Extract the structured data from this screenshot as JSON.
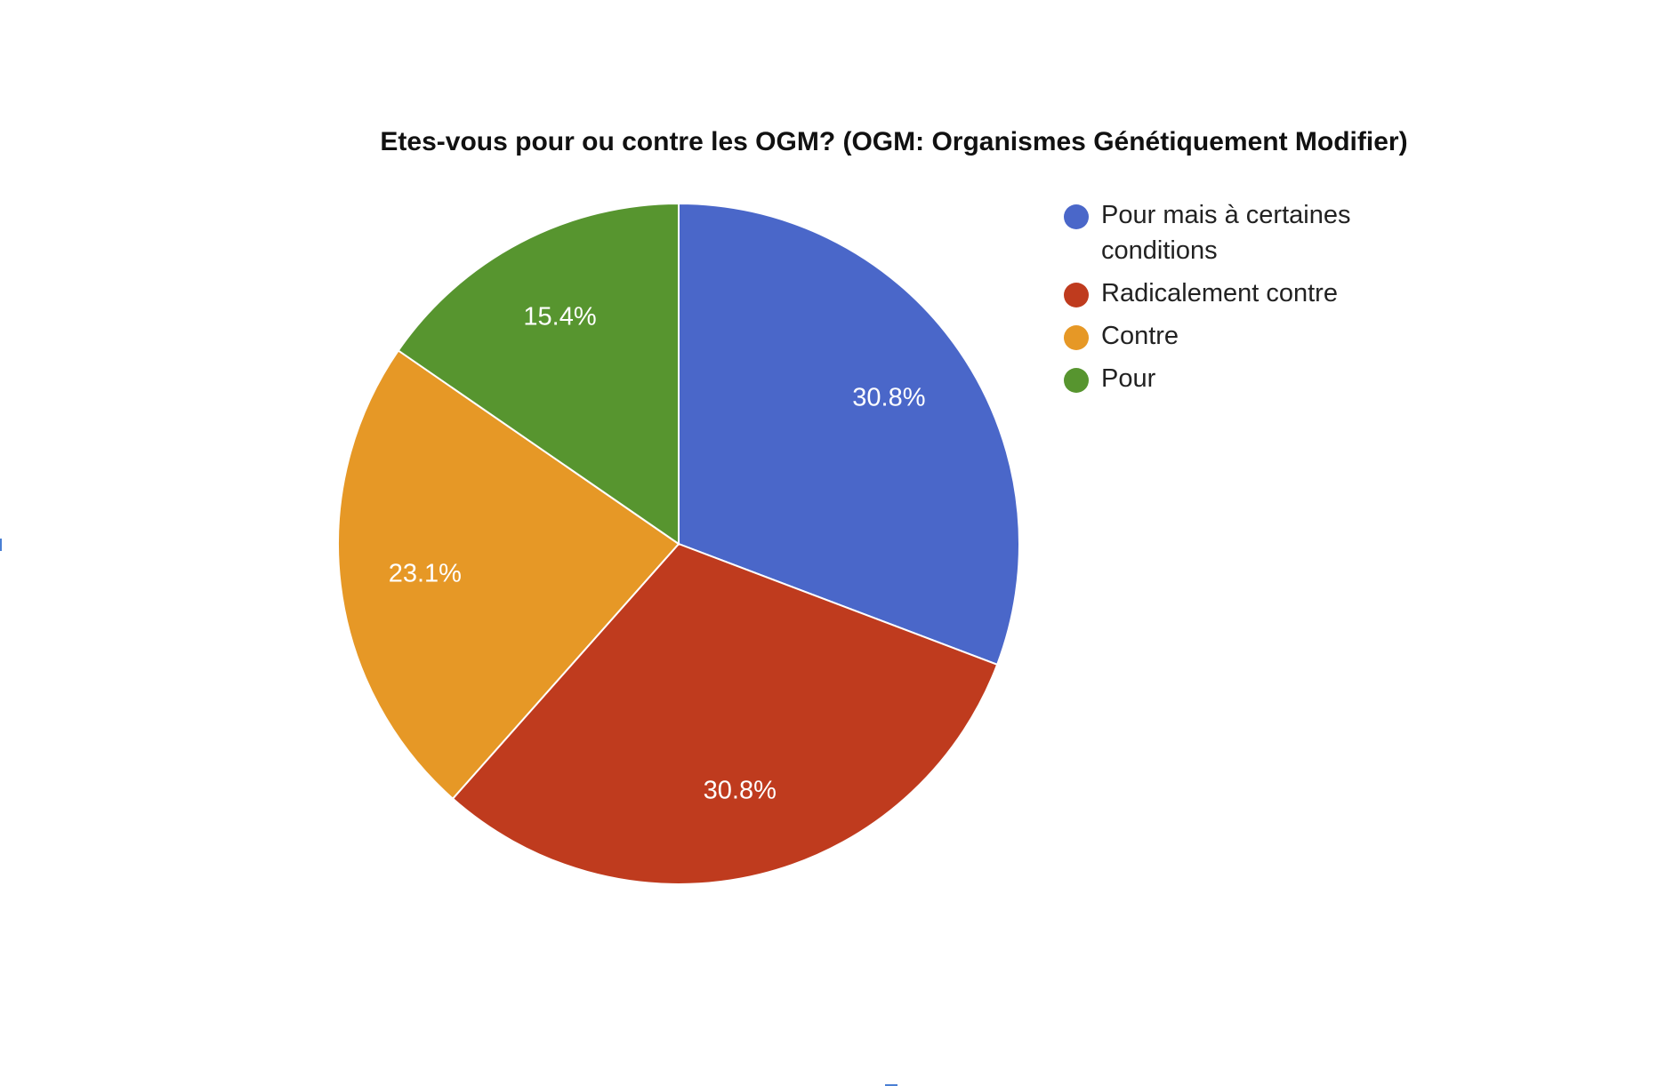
{
  "chart_data": {
    "type": "pie",
    "title": "Etes-vous pour ou contre les OGM? (OGM: Organismes Génétiquement Modifier)",
    "categories": [
      "Pour mais à certaines conditions",
      "Radicalement contre",
      "Contre",
      "Pour"
    ],
    "values": [
      30.8,
      30.8,
      23.1,
      15.4
    ],
    "value_labels": [
      "30.8%",
      "30.8%",
      "23.1%",
      "15.4%"
    ],
    "colors": [
      "#4a67c9",
      "#bf3b1e",
      "#e69826",
      "#57952f"
    ],
    "legend_position": "right"
  }
}
